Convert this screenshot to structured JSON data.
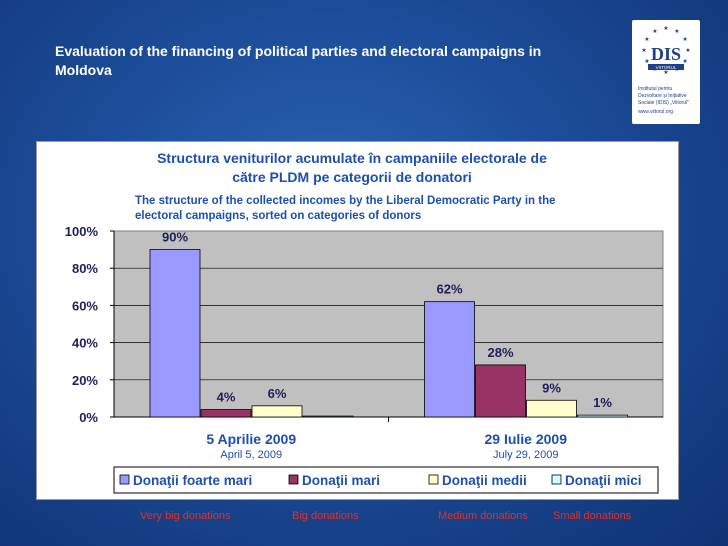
{
  "slide": {
    "title": "Evaluation of the financing of political parties and electoral campaigns in Moldova"
  },
  "logo": {
    "text_lines": [
      "Institutul pentru",
      "Dezvoltare şi Iniţiative",
      "Sociale (IDIS) „Viitorul\"",
      "www.viitorul.org"
    ],
    "colors": {
      "brand": "#1f3f8a",
      "stars": "#1f3f8a"
    }
  },
  "chart_data": {
    "type": "bar",
    "title": "Structura veniturilor acumulate în campaniile electorale de către PLDM pe categorii de donatori",
    "title_lines": [
      "Structura veniturilor acumulate în campaniile electorale de",
      "către PLDM pe categorii de donatori"
    ],
    "subtitle_lines": [
      "The structure of the collected incomes by the Liberal Democratic Party in the",
      "electoral campaigns, sorted on categories of donors"
    ],
    "categories": [
      "5 Aprilie 2009",
      "29 Iulie 2009"
    ],
    "category_translations": [
      "April 5, 2009",
      "July 29, 2009"
    ],
    "series": [
      {
        "name": "Donaţii foarte mari",
        "translation": "Very big donations",
        "values": [
          90,
          62
        ],
        "labels": [
          "90%",
          "62%"
        ],
        "color": "#9999ff"
      },
      {
        "name": "Donaţii mari",
        "translation": "Big donations",
        "values": [
          4,
          28
        ],
        "labels": [
          "4%",
          "28%"
        ],
        "color": "#993366"
      },
      {
        "name": "Donaţii medii",
        "translation": "Medium donations",
        "values": [
          6,
          9
        ],
        "labels": [
          "6%",
          "9%"
        ],
        "color": "#ffffcc"
      },
      {
        "name": "Donaţii mici",
        "translation": "Small donations",
        "values": [
          0.5,
          1
        ],
        "labels": [
          "",
          "1%"
        ],
        "color": "#ccffff"
      }
    ],
    "y_ticks": [
      "0%",
      "20%",
      "40%",
      "60%",
      "80%",
      "100%"
    ],
    "ylim": [
      0,
      100
    ],
    "grid": true,
    "legend_position": "bottom",
    "plot_background": "#c0c0c0"
  }
}
